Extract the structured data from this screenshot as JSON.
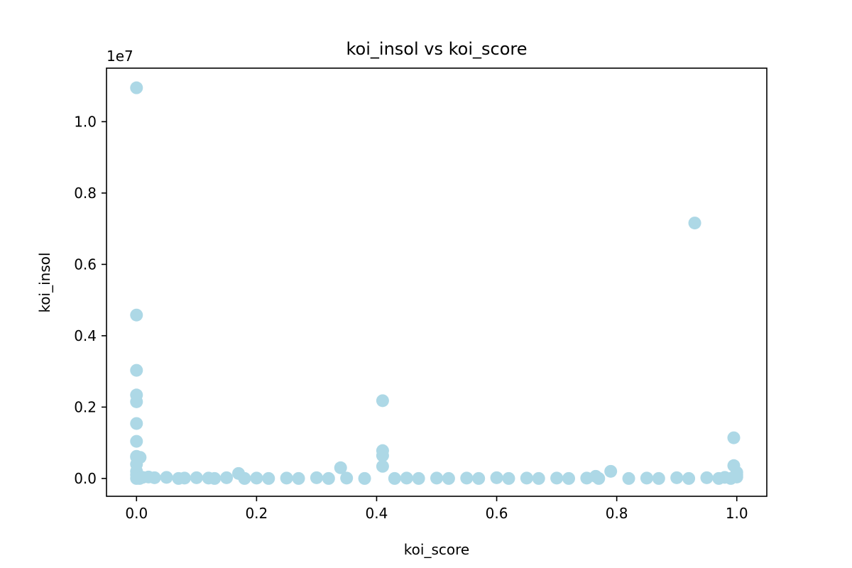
{
  "chart_data": {
    "type": "scatter",
    "title": "koi_insol vs koi_score",
    "xlabel": "koi_score",
    "ylabel": "koi_insol",
    "y_offset_label": "1e7",
    "xlim": [
      -0.05,
      1.05
    ],
    "ylim": [
      -0.05,
      1.15
    ],
    "y_scale_factor": 10000000,
    "xticks": [
      0.0,
      0.2,
      0.4,
      0.6,
      0.8,
      1.0
    ],
    "xtick_labels": [
      "0.0",
      "0.2",
      "0.4",
      "0.6",
      "0.8",
      "1.0"
    ],
    "yticks": [
      0.0,
      0.2,
      0.4,
      0.6,
      0.8,
      1.0
    ],
    "ytick_labels": [
      "0.0",
      "0.2",
      "0.4",
      "0.6",
      "0.8",
      "1.0"
    ],
    "grid": false,
    "legend": "none",
    "marker_color": "#add8e6",
    "series": [
      {
        "name": "",
        "x": [
          0.0,
          0.0,
          0.0,
          0.0,
          0.0,
          0.0,
          0.0,
          0.0,
          0.0,
          0.006,
          0.0,
          0.0,
          0.0,
          0.93,
          0.41,
          0.41,
          0.41,
          0.41,
          0.34,
          0.995,
          0.995,
          1.0,
          1.0,
          0.79,
          0.17,
          0.765,
          0.0,
          0.01,
          0.02,
          0.03,
          0.05,
          0.08,
          0.1,
          0.12,
          0.15,
          0.2,
          0.25,
          0.3,
          0.35,
          0.45,
          0.5,
          0.55,
          0.6,
          0.65,
          0.7,
          0.75,
          0.85,
          0.9,
          0.95,
          0.98,
          1.0,
          0.005,
          0.07,
          0.13,
          0.18,
          0.22,
          0.27,
          0.32,
          0.38,
          0.43,
          0.47,
          0.52,
          0.57,
          0.62,
          0.67,
          0.72,
          0.77,
          0.82,
          0.87,
          0.92,
          0.97,
          0.99
        ],
        "y": [
          1.095,
          0.458,
          0.303,
          0.234,
          0.215,
          0.154,
          0.104,
          0.062,
          0.06,
          0.059,
          0.04,
          0.02,
          0.01,
          0.716,
          0.218,
          0.078,
          0.064,
          0.034,
          0.03,
          0.114,
          0.036,
          0.017,
          0.01,
          0.02,
          0.014,
          0.006,
          0.0,
          0.003,
          0.004,
          0.002,
          0.003,
          0.001,
          0.002,
          0.001,
          0.002,
          0.001,
          0.001,
          0.002,
          0.001,
          0.001,
          0.001,
          0.001,
          0.002,
          0.001,
          0.001,
          0.001,
          0.001,
          0.002,
          0.002,
          0.003,
          0.004,
          0.0,
          0.0,
          0.0,
          0.0,
          0.0,
          0.0,
          0.0,
          0.0,
          0.0,
          0.0,
          0.0,
          0.0,
          0.0,
          0.0,
          0.0,
          0.0,
          0.0,
          0.0,
          0.0,
          0.0,
          0.0
        ]
      }
    ]
  }
}
